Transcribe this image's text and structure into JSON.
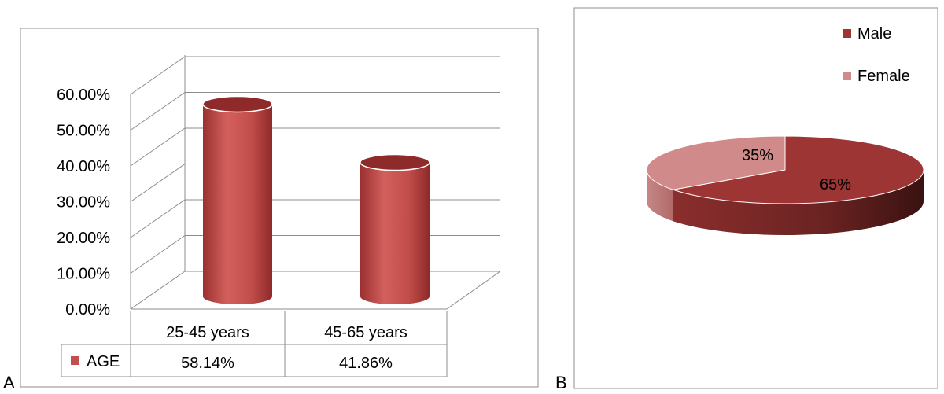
{
  "panels": {
    "a_label": "A",
    "b_label": "B"
  },
  "colors": {
    "bar_dark": "#8e2a2a",
    "bar_main": "#c0504d",
    "bar_light": "#d96764",
    "male": "#9c3534",
    "female": "#d08a89",
    "grid": "#8c8c8c"
  },
  "chart_data": [
    {
      "type": "bar",
      "categories": [
        "25-45 years",
        "45-65 years"
      ],
      "series": [
        {
          "name": "AGE",
          "values": [
            58.14,
            41.86
          ],
          "value_labels": [
            "58.14%",
            "41.86%"
          ]
        }
      ],
      "ylim": [
        0,
        60
      ],
      "yticks": [
        0,
        10,
        20,
        30,
        40,
        50,
        60
      ],
      "ytick_labels": [
        "0.00%",
        "10.00%",
        "20.00%",
        "30.00%",
        "40.00%",
        "50.00%",
        "60.00%"
      ],
      "grid": true,
      "legend": "data-table"
    },
    {
      "type": "pie",
      "labels": [
        "Male",
        "Female"
      ],
      "values": [
        65,
        35
      ],
      "value_labels": [
        "65%",
        "35%"
      ],
      "legend": "top-right"
    }
  ]
}
